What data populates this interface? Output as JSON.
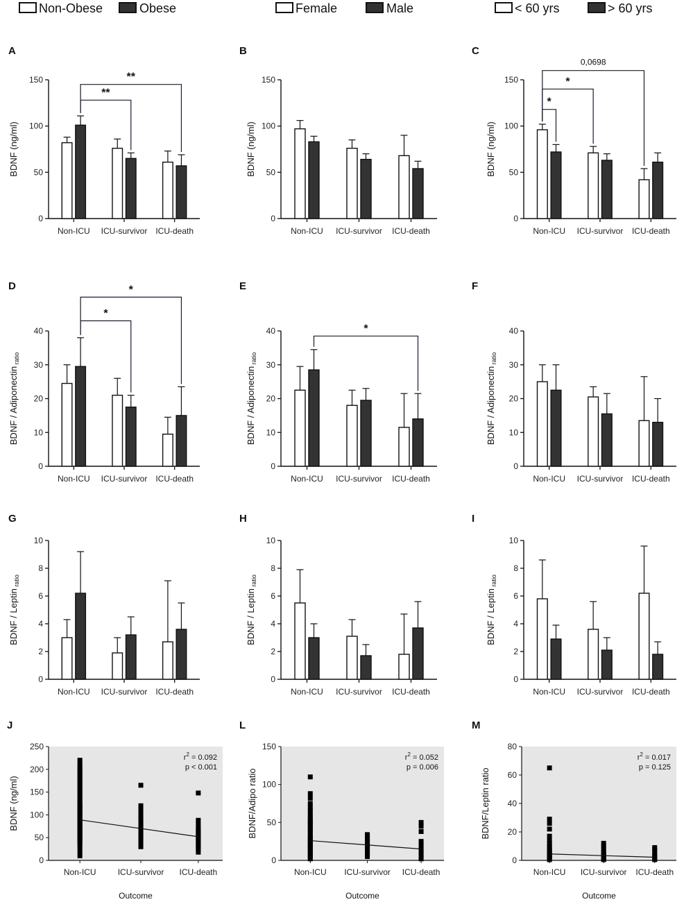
{
  "legends": [
    {
      "items": [
        {
          "label": "Non-Obese",
          "fill": "#ffffff"
        },
        {
          "label": "Obese",
          "fill": "#333333"
        }
      ]
    },
    {
      "items": [
        {
          "label": "Female",
          "fill": "#ffffff"
        },
        {
          "label": "Male",
          "fill": "#333333"
        }
      ]
    },
    {
      "items": [
        {
          "label": "< 60 yrs",
          "fill": "#ffffff"
        },
        {
          "label": "> 60 yrs",
          "fill": "#333333"
        }
      ]
    }
  ],
  "colors": {
    "light_bar": "#ffffff",
    "dark_bar": "#333333",
    "axis": "#111111",
    "scatter_bg": "#e6e6e6"
  },
  "chart_data": [
    {
      "id": "A",
      "type": "bar",
      "categories": [
        "Non-ICU",
        "ICU-survivor",
        "ICU-death"
      ],
      "ylabel": "BDNF (ng/ml)",
      "ylabel_sub": "",
      "ylim": [
        0,
        150
      ],
      "yticks": [
        0,
        50,
        100,
        150
      ],
      "series": [
        {
          "name": "Non-Obese",
          "values": [
            82,
            76,
            61
          ],
          "errors": [
            6,
            10,
            12
          ]
        },
        {
          "name": "Obese",
          "values": [
            101,
            65,
            57
          ],
          "errors": [
            10,
            6,
            12
          ]
        }
      ],
      "annotations": [
        {
          "from": [
            0,
            1
          ],
          "to": [
            1,
            1
          ],
          "level": 128,
          "label": "**"
        },
        {
          "from": [
            0,
            1
          ],
          "to": [
            2,
            1
          ],
          "level": 145,
          "label": "**"
        }
      ]
    },
    {
      "id": "B",
      "type": "bar",
      "categories": [
        "Non-ICU",
        "ICU-survivor",
        "ICU-death"
      ],
      "ylabel": "BDNF (ng/ml)",
      "ylabel_sub": "",
      "ylim": [
        0,
        150
      ],
      "yticks": [
        0,
        50,
        100,
        150
      ],
      "series": [
        {
          "name": "Female",
          "values": [
            97,
            76,
            68
          ],
          "errors": [
            9,
            9,
            22
          ]
        },
        {
          "name": "Male",
          "values": [
            83,
            64,
            54
          ],
          "errors": [
            6,
            6,
            8
          ]
        }
      ],
      "annotations": []
    },
    {
      "id": "C",
      "type": "bar",
      "categories": [
        "Non-ICU",
        "ICU-survivor",
        "ICU-death"
      ],
      "ylabel": "BDNF (ng/ml)",
      "ylabel_sub": "",
      "ylim": [
        0,
        150
      ],
      "yticks": [
        0,
        50,
        100,
        150
      ],
      "series": [
        {
          "name": "< 60 yrs",
          "values": [
            96,
            71,
            42
          ],
          "errors": [
            6,
            7,
            12
          ]
        },
        {
          "name": "> 60 yrs",
          "values": [
            72,
            63,
            61
          ],
          "errors": [
            8,
            7,
            10
          ]
        }
      ],
      "annotations": [
        {
          "from": [
            0,
            0
          ],
          "to": [
            0,
            1
          ],
          "level": 118,
          "label": "*"
        },
        {
          "from": [
            0,
            0
          ],
          "to": [
            1,
            0
          ],
          "level": 140,
          "label": "*"
        },
        {
          "from": [
            0,
            0
          ],
          "to": [
            2,
            0
          ],
          "level": 160,
          "label": "0,0698"
        }
      ]
    },
    {
      "id": "D",
      "type": "bar",
      "categories": [
        "Non-ICU",
        "ICU-survivor",
        "ICU-death"
      ],
      "ylabel": "BDNF / Adiponectin",
      "ylabel_sub": "ratio",
      "ylim": [
        0,
        40
      ],
      "yticks": [
        0,
        10,
        20,
        30,
        40
      ],
      "series": [
        {
          "name": "Non-Obese",
          "values": [
            24.5,
            21,
            9.5
          ],
          "errors": [
            5.5,
            5,
            5
          ]
        },
        {
          "name": "Obese",
          "values": [
            29.5,
            17.5,
            15
          ],
          "errors": [
            8.5,
            3.5,
            8.5
          ]
        }
      ],
      "annotations": [
        {
          "from": [
            0,
            1
          ],
          "to": [
            1,
            1
          ],
          "level": 43,
          "label": "*"
        },
        {
          "from": [
            0,
            1
          ],
          "to": [
            2,
            1
          ],
          "level": 50,
          "label": "*"
        }
      ]
    },
    {
      "id": "E",
      "type": "bar",
      "categories": [
        "Non-ICU",
        "ICU-survivor",
        "ICU-death"
      ],
      "ylabel": "BDNF / Adiponectin",
      "ylabel_sub": "ratio",
      "ylim": [
        0,
        40
      ],
      "yticks": [
        0,
        10,
        20,
        30,
        40
      ],
      "series": [
        {
          "name": "Female",
          "values": [
            22.5,
            18,
            11.5
          ],
          "errors": [
            7,
            4.5,
            10
          ]
        },
        {
          "name": "Male",
          "values": [
            28.5,
            19.5,
            14
          ],
          "errors": [
            6,
            3.5,
            7.5
          ]
        }
      ],
      "annotations": [
        {
          "from": [
            0,
            1
          ],
          "to": [
            2,
            1
          ],
          "level": 38.5,
          "label": "*"
        }
      ]
    },
    {
      "id": "F",
      "type": "bar",
      "categories": [
        "Non-ICU",
        "ICU-survivor",
        "ICU-death"
      ],
      "ylabel": "BDNF / Adiponectin",
      "ylabel_sub": "ratio",
      "ylim": [
        0,
        40
      ],
      "yticks": [
        0,
        10,
        20,
        30,
        40
      ],
      "series": [
        {
          "name": "< 60 yrs",
          "values": [
            25,
            20.5,
            13.5
          ],
          "errors": [
            5,
            3,
            13
          ]
        },
        {
          "name": "> 60 yrs",
          "values": [
            22.5,
            15.5,
            13
          ],
          "errors": [
            7.5,
            6,
            7
          ]
        }
      ],
      "annotations": []
    },
    {
      "id": "G",
      "type": "bar",
      "categories": [
        "Non-ICU",
        "ICU-survivor",
        "ICU-death"
      ],
      "ylabel": "BDNF / Leptin",
      "ylabel_sub": "ratio",
      "ylim": [
        0,
        10
      ],
      "yticks": [
        0,
        2,
        4,
        6,
        8,
        10
      ],
      "series": [
        {
          "name": "Non-Obese",
          "values": [
            3,
            1.9,
            2.7
          ],
          "errors": [
            1.3,
            1.1,
            4.4
          ]
        },
        {
          "name": "Obese",
          "values": [
            6.2,
            3.2,
            3.6
          ],
          "errors": [
            3,
            1.3,
            1.9
          ]
        }
      ],
      "annotations": []
    },
    {
      "id": "H",
      "type": "bar",
      "categories": [
        "Non-ICU",
        "ICU-survivor",
        "ICU-death"
      ],
      "ylabel": "BDNF / Leptin",
      "ylabel_sub": "ratio",
      "ylim": [
        0,
        10
      ],
      "yticks": [
        0,
        2,
        4,
        6,
        8,
        10
      ],
      "series": [
        {
          "name": "Female",
          "values": [
            5.5,
            3.1,
            1.8
          ],
          "errors": [
            2.4,
            1.2,
            2.9
          ]
        },
        {
          "name": "Male",
          "values": [
            3,
            1.7,
            3.7
          ],
          "errors": [
            1,
            0.8,
            1.9
          ]
        }
      ],
      "annotations": []
    },
    {
      "id": "I",
      "type": "bar",
      "categories": [
        "Non-ICU",
        "ICU-survivor",
        "ICU-death"
      ],
      "ylabel": "BDNF / Leptin",
      "ylabel_sub": "ratio",
      "ylim": [
        0,
        10
      ],
      "yticks": [
        0,
        2,
        4,
        6,
        8,
        10
      ],
      "series": [
        {
          "name": "< 60 yrs",
          "values": [
            5.8,
            3.6,
            6.2
          ],
          "errors": [
            2.8,
            2,
            3.4
          ]
        },
        {
          "name": "> 60 yrs",
          "values": [
            2.9,
            2.1,
            1.8
          ],
          "errors": [
            1,
            0.9,
            0.9
          ]
        }
      ],
      "annotations": []
    },
    {
      "id": "J",
      "type": "scatter",
      "categories": [
        "Non-ICU",
        "ICU-survivor",
        "ICU-death"
      ],
      "xlabel": "Outcome",
      "ylabel": "BDNF (ng/ml)",
      "ylim": [
        0,
        250
      ],
      "yticks": [
        0,
        50,
        100,
        150,
        200,
        250
      ],
      "r2": "r2 = 0.092",
      "r2_label": "r",
      "r2_value": " = 0.092",
      "p": "p < 0.001",
      "regression": [
        89,
        52
      ],
      "points": [
        [
          10,
          20,
          28,
          35,
          40,
          44,
          48,
          52,
          55,
          58,
          62,
          65,
          68,
          72,
          75,
          78,
          82,
          85,
          88,
          92,
          95,
          98,
          102,
          105,
          108,
          112,
          115,
          118,
          122,
          125,
          130,
          135,
          140,
          145,
          150,
          155,
          160,
          165,
          170,
          175,
          180,
          185,
          190,
          195,
          200,
          205,
          212,
          220
        ],
        [
          30,
          35,
          40,
          45,
          48,
          52,
          55,
          58,
          62,
          65,
          68,
          72,
          75,
          78,
          82,
          85,
          88,
          92,
          98,
          105,
          112,
          120,
          165
        ],
        [
          18,
          25,
          30,
          35,
          40,
          45,
          50,
          55,
          60,
          65,
          70,
          78,
          88,
          148
        ]
      ]
    },
    {
      "id": "L",
      "type": "scatter",
      "categories": [
        "Non-ICU",
        "ICU-survivor",
        "ICU-death"
      ],
      "xlabel": "Outcome",
      "ylabel": "BDNF/Adipo ratio",
      "ylim": [
        0,
        150
      ],
      "yticks": [
        0,
        50,
        100,
        150
      ],
      "r2": "r2 = 0.052",
      "r2_label": "r",
      "r2_value": " = 0.052",
      "p": "p = 0.006",
      "regression": [
        26,
        15
      ],
      "points": [
        [
          2,
          4,
          6,
          8,
          10,
          12,
          14,
          16,
          18,
          20,
          22,
          24,
          26,
          28,
          30,
          32,
          35,
          38,
          40,
          42,
          45,
          48,
          50,
          52,
          55,
          58,
          62,
          66,
          70,
          75,
          82,
          88,
          110
        ],
        [
          5,
          8,
          10,
          12,
          14,
          16,
          18,
          20,
          22,
          24,
          26,
          28,
          30,
          32,
          34
        ],
        [
          2,
          5,
          8,
          12,
          15,
          20,
          25,
          38,
          45,
          50
        ]
      ]
    },
    {
      "id": "M",
      "type": "scatter",
      "categories": [
        "Non-ICU",
        "ICU-survivor",
        "ICU-death"
      ],
      "xlabel": "Outcome",
      "ylabel": "BDNF/Leptin ratio",
      "ylim": [
        0,
        80
      ],
      "yticks": [
        0,
        20,
        40,
        60,
        80
      ],
      "r2": "r2 = 0.017",
      "r2_label": "r",
      "r2_value": " = 0.017",
      "p": "p = 0.125",
      "regression": [
        4.5,
        2.2
      ],
      "points": [
        [
          0.5,
          1,
          1.5,
          2,
          2.5,
          3,
          3.5,
          4,
          5,
          6,
          7,
          8,
          9,
          10,
          12,
          14,
          17,
          22,
          26,
          29,
          65
        ],
        [
          0.5,
          1,
          1.5,
          2,
          3,
          4,
          5,
          6,
          8,
          10,
          12
        ],
        [
          0.5,
          1,
          2,
          3,
          4,
          6,
          8,
          9
        ]
      ]
    }
  ]
}
